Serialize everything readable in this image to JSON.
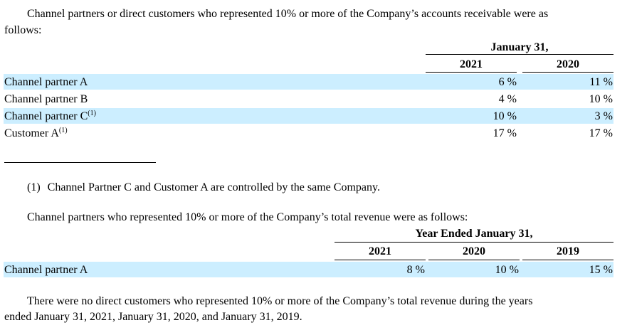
{
  "section1": {
    "intro_line1": "Channel partners or direct customers who represented 10% or more of the Company’s accounts receivable were as",
    "intro_line2": "follows:",
    "header_group": "January 31,",
    "columns": [
      "2021",
      "2020"
    ],
    "rows": [
      {
        "label": "Channel partner A",
        "note": "",
        "values": [
          "6 %",
          "11 %"
        ]
      },
      {
        "label": "Channel partner B",
        "note": "",
        "values": [
          "4 %",
          "10 %"
        ]
      },
      {
        "label": "Channel partner C",
        "note": "(1)",
        "values": [
          "10 %",
          "3 %"
        ]
      },
      {
        "label": "Customer A",
        "note": "(1)",
        "values": [
          "17 %",
          "17 %"
        ]
      }
    ]
  },
  "footnote": {
    "marker": "(1)",
    "text": "Channel Partner C and Customer A are controlled by the same Company."
  },
  "section2": {
    "intro": "Channel partners who represented 10% or more of the Company’s total revenue were as follows:",
    "header_group": "Year Ended January 31,",
    "columns": [
      "2021",
      "2020",
      "2019"
    ],
    "rows": [
      {
        "label": "Channel partner A",
        "values": [
          "8 %",
          "10 %",
          "15 %"
        ]
      }
    ]
  },
  "closing": {
    "line1": "There were no direct customers who represented 10% or more of the Company’s total revenue during the years",
    "line2": "ended January 31, 2021, January 31, 2020, and January 31, 2019."
  },
  "colors": {
    "row_highlight": "#cceeff",
    "text": "#000000"
  }
}
